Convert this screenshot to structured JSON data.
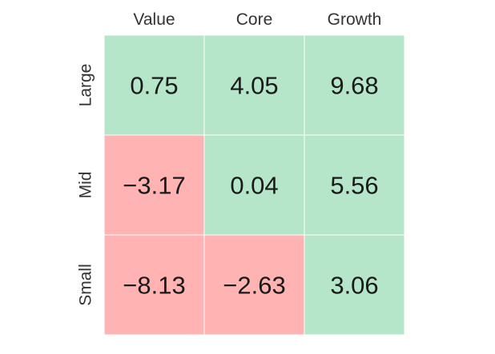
{
  "chart_data": {
    "type": "heatmap",
    "columns": [
      "Value",
      "Core",
      "Growth"
    ],
    "rows": [
      "Large",
      "Mid",
      "Small"
    ],
    "values": [
      [
        0.75,
        4.05,
        9.68
      ],
      [
        -3.17,
        0.04,
        5.56
      ],
      [
        -8.13,
        -2.63,
        3.06
      ]
    ],
    "labels": [
      [
        "0.75",
        "4.05",
        "9.68"
      ],
      [
        "−3.17",
        "0.04",
        "5.56"
      ],
      [
        "−8.13",
        "−2.63",
        "3.06"
      ]
    ],
    "positive_color": "#b5e6c9",
    "negative_color": "#ffb3b3",
    "grid_line_color": "#ffffff"
  }
}
